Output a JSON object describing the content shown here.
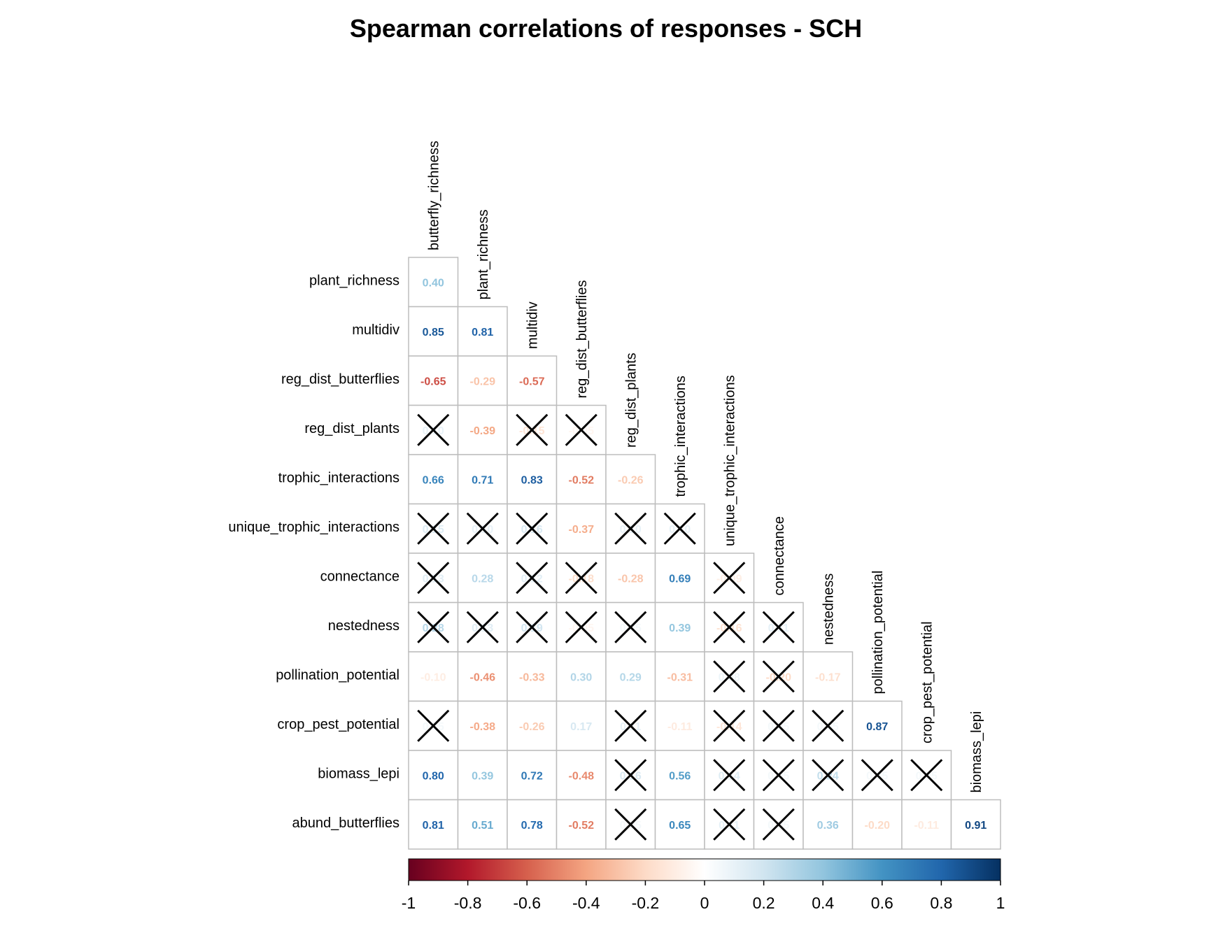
{
  "chart_data": {
    "type": "heatmap",
    "title": "Spearman correlations of responses - SCH",
    "variables": [
      "butterfly_richness",
      "plant_richness",
      "multidiv",
      "reg_dist_butterflies",
      "reg_dist_plants",
      "trophic_interactions",
      "unique_trophic_interactions",
      "connectance",
      "nestedness",
      "pollination_potential",
      "crop_pest_potential",
      "biomass_lepi",
      "abund_butterflies"
    ],
    "row_labels": [
      "plant_richness",
      "multidiv",
      "reg_dist_butterflies",
      "reg_dist_plants",
      "trophic_interactions",
      "unique_trophic_interactions",
      "connectance",
      "nestedness",
      "pollination_potential",
      "crop_pest_potential",
      "biomass_lepi",
      "abund_butterflies"
    ],
    "col_labels": [
      "butterfly_richness",
      "plant_richness",
      "multidiv",
      "reg_dist_butterflies",
      "reg_dist_plants",
      "trophic_interactions",
      "unique_trophic_interactions",
      "connectance",
      "nestedness",
      "pollination_potential",
      "crop_pest_potential",
      "biomass_lepi"
    ],
    "lower_triangle_values": [
      [
        0.4
      ],
      [
        0.85,
        0.81
      ],
      [
        -0.65,
        -0.29,
        -0.57
      ],
      [
        0.1,
        -0.39,
        -0.15,
        -0.05
      ],
      [
        0.66,
        0.71,
        0.83,
        -0.52,
        -0.26
      ],
      [
        0.15,
        0.1,
        0.16,
        -0.37,
        0.1,
        0.1
      ],
      [
        0.13,
        0.28,
        0.12,
        -0.18,
        -0.28,
        0.69,
        -0.09
      ],
      [
        0.28,
        0.13,
        0.19,
        -0.05,
        0.05,
        0.39,
        -0.16,
        0.11
      ],
      [
        -0.1,
        -0.46,
        -0.33,
        0.3,
        0.29,
        -0.31,
        0.08,
        -0.2,
        -0.17
      ],
      [
        0.05,
        -0.38,
        -0.26,
        0.17,
        0.11,
        -0.11,
        -0.14,
        0.05,
        0.05,
        0.87
      ],
      [
        0.8,
        0.39,
        0.72,
        -0.48,
        0.16,
        0.56,
        0.14,
        0.05,
        0.24,
        0.05,
        0.05
      ],
      [
        0.81,
        0.51,
        0.78,
        -0.52,
        0.05,
        0.65,
        0.11,
        0.05,
        0.36,
        -0.2,
        -0.11,
        0.91
      ]
    ],
    "not_significant": [
      [
        false
      ],
      [
        false,
        false
      ],
      [
        false,
        false,
        false
      ],
      [
        true,
        false,
        true,
        true
      ],
      [
        false,
        false,
        false,
        false,
        false
      ],
      [
        true,
        true,
        true,
        false,
        true,
        true
      ],
      [
        true,
        false,
        true,
        true,
        false,
        false,
        true
      ],
      [
        true,
        true,
        true,
        true,
        true,
        false,
        true,
        true
      ],
      [
        false,
        false,
        false,
        false,
        false,
        false,
        true,
        true,
        false
      ],
      [
        true,
        false,
        false,
        false,
        true,
        false,
        true,
        true,
        true,
        false
      ],
      [
        false,
        false,
        false,
        false,
        true,
        false,
        true,
        true,
        true,
        true,
        true
      ],
      [
        false,
        false,
        false,
        false,
        true,
        false,
        true,
        true,
        false,
        false,
        false,
        false
      ]
    ],
    "colorbar": {
      "range": [
        -1,
        1
      ],
      "ticks": [
        "-1",
        "-0.8",
        "-0.6",
        "-0.4",
        "-0.2",
        "0",
        "0.2",
        "0.4",
        "0.6",
        "0.8",
        "1"
      ],
      "colors": [
        "#67001F",
        "#B2182B",
        "#D6604D",
        "#F4A582",
        "#FDDBC7",
        "#FFFFFF",
        "#D1E5F0",
        "#92C5DE",
        "#4393C3",
        "#2166AC",
        "#053061"
      ]
    }
  }
}
